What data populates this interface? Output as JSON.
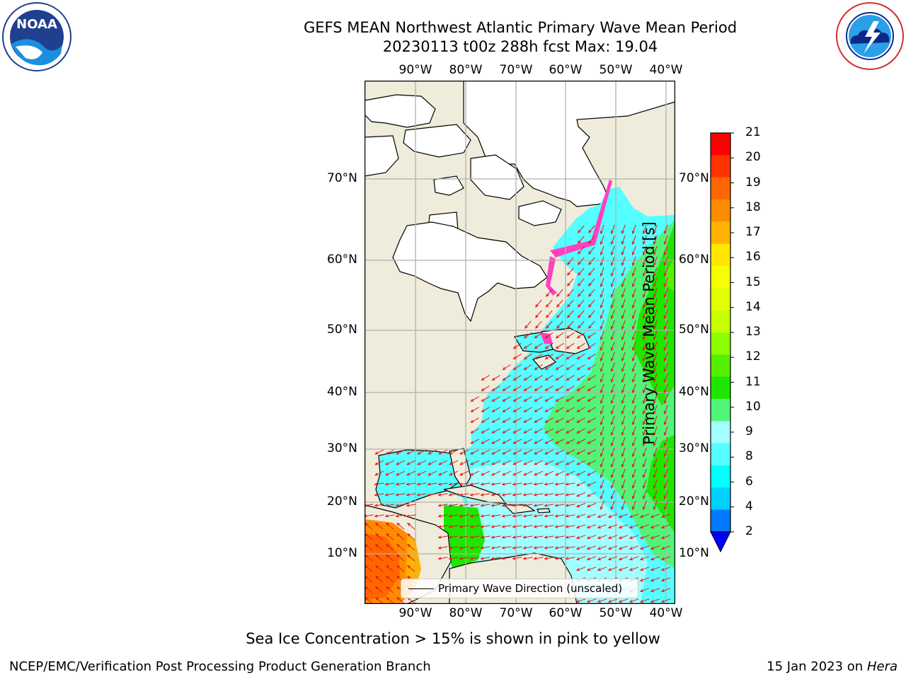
{
  "title": {
    "line1": "GEFS MEAN Northwest Atlantic Primary Wave Mean Period",
    "line2": "20230113 t00z 288h fcst   Max: 19.04"
  },
  "logos": {
    "noara_text": "NOAA",
    "noaa_ring_text": "NATIONAL OCEANIC AND ATMOSPHERIC ADMINISTRATION · U.S. DEPARTMENT OF COMMERCE",
    "nws_ring_text": "NATIONAL WEATHER SERVICE"
  },
  "map": {
    "lon_labels": [
      "90°W",
      "80°W",
      "70°W",
      "60°W",
      "50°W",
      "40°W"
    ],
    "lat_labels": [
      "70°N",
      "60°N",
      "50°N",
      "40°N",
      "30°N",
      "20°N",
      "10°N"
    ],
    "legend_label": "Primary Wave Direction (unscaled)",
    "colors": {
      "land": "#efecdb",
      "ice": "#ffffff",
      "arrow": "#e8161b",
      "grid": "#b0b0b0"
    }
  },
  "colorbar": {
    "label": "Primary Wave Mean Period [s]",
    "ticks": [
      "21",
      "20",
      "19",
      "18",
      "17",
      "16",
      "15",
      "14",
      "13",
      "12",
      "11",
      "10",
      "9",
      "8",
      "6",
      "4",
      "2"
    ],
    "colors": [
      "#ff0000",
      "#ff3300",
      "#ff6600",
      "#ff8c00",
      "#ffb300",
      "#ffe600",
      "#f5ff00",
      "#e1ff00",
      "#c6ff00",
      "#8cff00",
      "#55f000",
      "#1ee600",
      "#50f578",
      "#a0ffff",
      "#55ffff",
      "#00ffff",
      "#00d0ff",
      "#0078ff"
    ],
    "under_color": "#0000ff"
  },
  "note": "Sea Ice Concentration > 15% is shown in pink to yellow",
  "footer": {
    "left": "NCEP/EMC/Verification Post Processing Product Generation Branch",
    "date": "15 Jan 2023 on ",
    "machine": "Hera"
  }
}
